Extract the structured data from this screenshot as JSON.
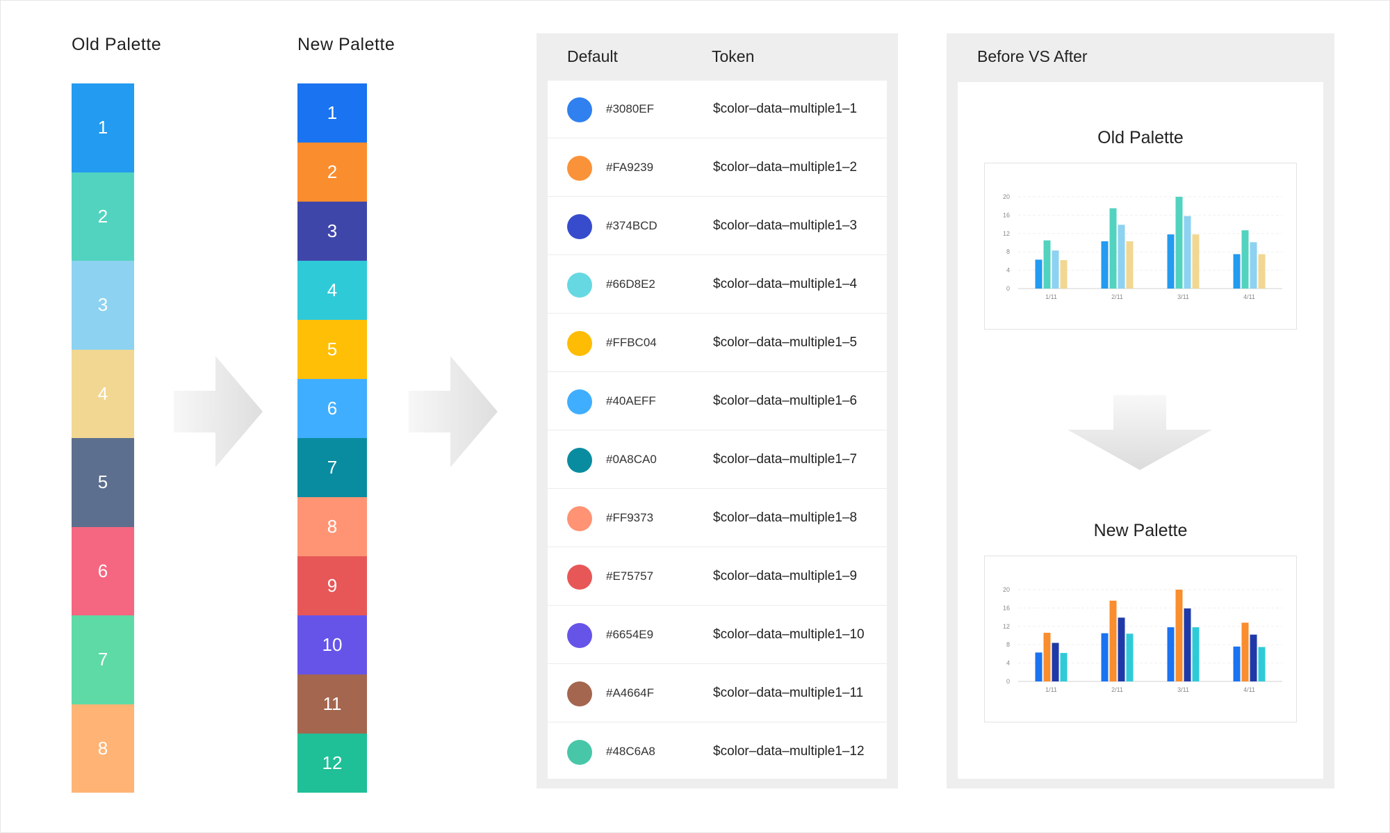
{
  "old_palette": {
    "title": "Old Palette",
    "swatches": [
      {
        "label": "1",
        "color": "#229BF0"
      },
      {
        "label": "2",
        "color": "#52D3BF"
      },
      {
        "label": "3",
        "color": "#8DD2F0"
      },
      {
        "label": "4",
        "color": "#F1D792"
      },
      {
        "label": "5",
        "color": "#5C6F8E"
      },
      {
        "label": "6",
        "color": "#F56680"
      },
      {
        "label": "7",
        "color": "#5DDAA6"
      },
      {
        "label": "8",
        "color": "#FFB375"
      }
    ]
  },
  "new_palette": {
    "title": "New Palette",
    "swatches": [
      {
        "label": "1",
        "color": "#1A73F0"
      },
      {
        "label": "2",
        "color": "#FA8D2E"
      },
      {
        "label": "3",
        "color": "#3F46A9"
      },
      {
        "label": "4",
        "color": "#2FCAD8"
      },
      {
        "label": "5",
        "color": "#FFBF07"
      },
      {
        "label": "6",
        "color": "#40AEFF"
      },
      {
        "label": "7",
        "color": "#0A8CA0"
      },
      {
        "label": "8",
        "color": "#FF9475"
      },
      {
        "label": "9",
        "color": "#E75757"
      },
      {
        "label": "10",
        "color": "#6654E9"
      },
      {
        "label": "11",
        "color": "#A4664F"
      },
      {
        "label": "12",
        "color": "#1FBF97"
      }
    ]
  },
  "token_table": {
    "headers": {
      "default": "Default",
      "token": "Token"
    },
    "rows": [
      {
        "hex": "#3080EF",
        "token": "$color–data–multiple1–1",
        "color": "#3080EF"
      },
      {
        "hex": "#FA9239",
        "token": "$color–data–multiple1–2",
        "color": "#FA9239"
      },
      {
        "hex": "#374BCD",
        "token": "$color–data–multiple1–3",
        "color": "#374BCD"
      },
      {
        "hex": "#66D8E2",
        "token": "$color–data–multiple1–4",
        "color": "#66D8E2"
      },
      {
        "hex": "#FFBC04",
        "token": "$color–data–multiple1–5",
        "color": "#FFBC04"
      },
      {
        "hex": "#40AEFF",
        "token": "$color–data–multiple1–6",
        "color": "#40AEFF"
      },
      {
        "hex": "#0A8CA0",
        "token": "$color–data–multiple1–7",
        "color": "#0A8CA0"
      },
      {
        "hex": "#FF9373",
        "token": "$color–data–multiple1–8",
        "color": "#FF9373"
      },
      {
        "hex": "#E75757",
        "token": "$color–data–multiple1–9",
        "color": "#E75757"
      },
      {
        "hex": "#6654E9",
        "token": "$color–data–multiple1–10",
        "color": "#6654E9"
      },
      {
        "hex": "#A4664F",
        "token": "$color–data–multiple1–11",
        "color": "#A4664F"
      },
      {
        "hex": "#48C6A8",
        "token": "$color–data–multiple1–12",
        "color": "#48C6A8"
      }
    ]
  },
  "comparison": {
    "title": "Before VS After",
    "old_title": "Old Palette",
    "new_title": "New Palette",
    "arrow_color": "#e8e8e8"
  },
  "chart_data": [
    {
      "type": "bar",
      "title": "Old Palette",
      "categories": [
        "1/11",
        "2/11",
        "3/11",
        "4/11"
      ],
      "y_ticks": [
        "0",
        "4",
        "8",
        "12",
        "16",
        "20"
      ],
      "ylim": [
        0,
        20
      ],
      "grid": true,
      "series": [
        {
          "color": "#229BF0",
          "values": [
            6.3,
            10.3,
            11.8,
            7.5
          ]
        },
        {
          "color": "#52D3BF",
          "values": [
            10.5,
            17.5,
            20,
            12.7
          ]
        },
        {
          "color": "#8DD2F0",
          "values": [
            8.3,
            13.9,
            15.8,
            10.1
          ]
        },
        {
          "color": "#F1D792",
          "values": [
            6.2,
            10.3,
            11.8,
            7.5
          ]
        }
      ]
    },
    {
      "type": "bar",
      "title": "New Palette",
      "categories": [
        "1/11",
        "2/11",
        "3/11",
        "4/11"
      ],
      "y_ticks": [
        "0",
        "4",
        "8",
        "12",
        "16",
        "20"
      ],
      "ylim": [
        0,
        20
      ],
      "grid": true,
      "series": [
        {
          "color": "#1A73F0",
          "values": [
            6.3,
            10.5,
            11.8,
            7.6
          ]
        },
        {
          "color": "#FA8D2E",
          "values": [
            10.6,
            17.6,
            20,
            12.8
          ]
        },
        {
          "color": "#1F3AA8",
          "values": [
            8.4,
            13.9,
            15.9,
            10.2
          ]
        },
        {
          "color": "#2FCAD8",
          "values": [
            6.2,
            10.4,
            11.8,
            7.5
          ]
        }
      ]
    }
  ]
}
